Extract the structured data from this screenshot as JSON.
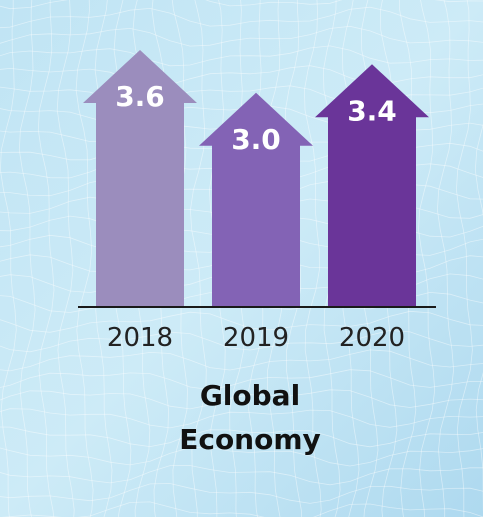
{
  "chart_data": {
    "type": "bar",
    "categories": [
      "2018",
      "2019",
      "2020"
    ],
    "values": [
      3.6,
      3.0,
      3.4
    ],
    "value_labels": [
      "3.6",
      "3.0",
      "3.4"
    ],
    "title_lines": [
      "Global",
      "Economy"
    ],
    "xlabel": "",
    "ylabel": "",
    "ylim": [
      0,
      4.3
    ],
    "grid": false,
    "legend": "none",
    "bar_style": "arrow",
    "colors": [
      "#9b8dbd",
      "#8363b5",
      "#6a3599"
    ],
    "background": "#c5e6f4"
  }
}
